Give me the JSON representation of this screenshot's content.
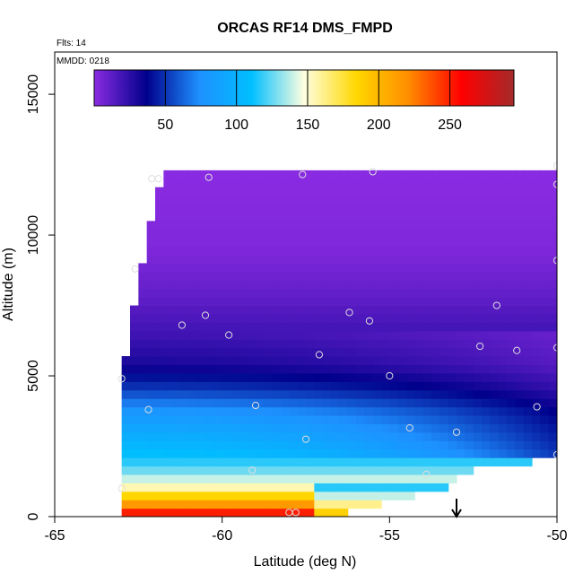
{
  "chart_data": {
    "type": "heatmap",
    "title": "ORCAS RF14 DMS_FMPD",
    "xlabel": "Latitude (deg N)",
    "ylabel": "Altitude (m)",
    "xlim": [
      -65,
      -50
    ],
    "ylim": [
      0,
      16500
    ],
    "x_ticks": [
      -65,
      -60,
      -55,
      -50
    ],
    "x_tick_labels": [
      "-65",
      "-60",
      "-55",
      "-50"
    ],
    "y_ticks": [
      0,
      5000,
      10000,
      15000
    ],
    "y_tick_labels": [
      "0",
      "5000",
      "10000",
      "15000"
    ],
    "annotations": {
      "flights": "Flts: 14",
      "mmdd": "MMDD: 0218"
    },
    "colorbar": {
      "min": 0,
      "max": 295,
      "ticks": [
        50,
        100,
        150,
        200,
        250
      ],
      "tick_labels": [
        "50",
        "100",
        "150",
        "200",
        "250"
      ],
      "colors": [
        "#8a2be2",
        "#00008b",
        "#1e90ff",
        "#00bfff",
        "#ffffe0",
        "#ffd700",
        "#ff8c00",
        "#ff0000",
        "#a52a2a"
      ]
    },
    "coverage_profile": [
      {
        "lat": -63.0,
        "top": 5000,
        "bottom": 0
      },
      {
        "lat": -62.7,
        "top": 7000,
        "bottom": 0
      },
      {
        "lat": -62.4,
        "top": 9000,
        "bottom": 0
      },
      {
        "lat": -62.1,
        "top": 10500,
        "bottom": 0
      },
      {
        "lat": -61.8,
        "top": 12300,
        "bottom": 0
      },
      {
        "lat": -57.2,
        "top": 12300,
        "bottom": 0
      },
      {
        "lat": -56.9,
        "top": 12300,
        "bottom": 0
      },
      {
        "lat": -53.4,
        "top": 12300,
        "bottom": 1000
      },
      {
        "lat": -52.5,
        "top": 12300,
        "bottom": 1700
      },
      {
        "lat": -51.5,
        "top": 12300,
        "bottom": 1900
      },
      {
        "lat": -50.0,
        "top": 12300,
        "bottom": 2000
      }
    ],
    "field_stops": [
      {
        "alt": 0,
        "value": 270
      },
      {
        "alt": 300,
        "value": 230
      },
      {
        "alt": 700,
        "value": 190
      },
      {
        "alt": 1100,
        "value": 150
      },
      {
        "alt": 1800,
        "value": 120
      },
      {
        "alt": 2700,
        "value": 100
      },
      {
        "alt": 3700,
        "value": 80
      },
      {
        "alt": 4600,
        "value": 50
      },
      {
        "alt": 5400,
        "value": 30
      },
      {
        "alt": 6500,
        "value": 20
      },
      {
        "alt": 8000,
        "value": 10
      },
      {
        "alt": 9500,
        "value": 3
      },
      {
        "alt": 12300,
        "value": 0
      }
    ],
    "sample_points": [
      {
        "lat": -62.1,
        "alt": 12000
      },
      {
        "lat": -61.9,
        "alt": 12000
      },
      {
        "lat": -60.4,
        "alt": 12050
      },
      {
        "lat": -57.6,
        "alt": 12150
      },
      {
        "lat": -55.5,
        "alt": 12250
      },
      {
        "lat": -50.0,
        "alt": 12450
      },
      {
        "lat": -50.0,
        "alt": 11800
      },
      {
        "lat": -50.0,
        "alt": 9100
      },
      {
        "lat": -62.6,
        "alt": 8800
      },
      {
        "lat": -51.8,
        "alt": 7500
      },
      {
        "lat": -56.2,
        "alt": 7250
      },
      {
        "lat": -60.5,
        "alt": 7150
      },
      {
        "lat": -55.6,
        "alt": 6950
      },
      {
        "lat": -61.2,
        "alt": 6800
      },
      {
        "lat": -59.8,
        "alt": 6450
      },
      {
        "lat": -52.3,
        "alt": 6050
      },
      {
        "lat": -51.2,
        "alt": 5900
      },
      {
        "lat": -57.1,
        "alt": 5750
      },
      {
        "lat": -50.0,
        "alt": 6000
      },
      {
        "lat": -55.0,
        "alt": 5000
      },
      {
        "lat": -63.0,
        "alt": 4900
      },
      {
        "lat": -62.2,
        "alt": 3800
      },
      {
        "lat": -59.0,
        "alt": 3950
      },
      {
        "lat": -50.6,
        "alt": 3900
      },
      {
        "lat": -54.4,
        "alt": 3150
      },
      {
        "lat": -53.0,
        "alt": 3000
      },
      {
        "lat": -57.5,
        "alt": 2750
      },
      {
        "lat": -59.1,
        "alt": 1650
      },
      {
        "lat": -53.9,
        "alt": 1500
      },
      {
        "lat": -63.0,
        "alt": 1000
      },
      {
        "lat": -50.0,
        "alt": 2200
      },
      {
        "lat": -57.8,
        "alt": 150
      },
      {
        "lat": -58.0,
        "alt": 150
      }
    ],
    "marker": {
      "lat": -53.0,
      "label": "arrow"
    }
  }
}
